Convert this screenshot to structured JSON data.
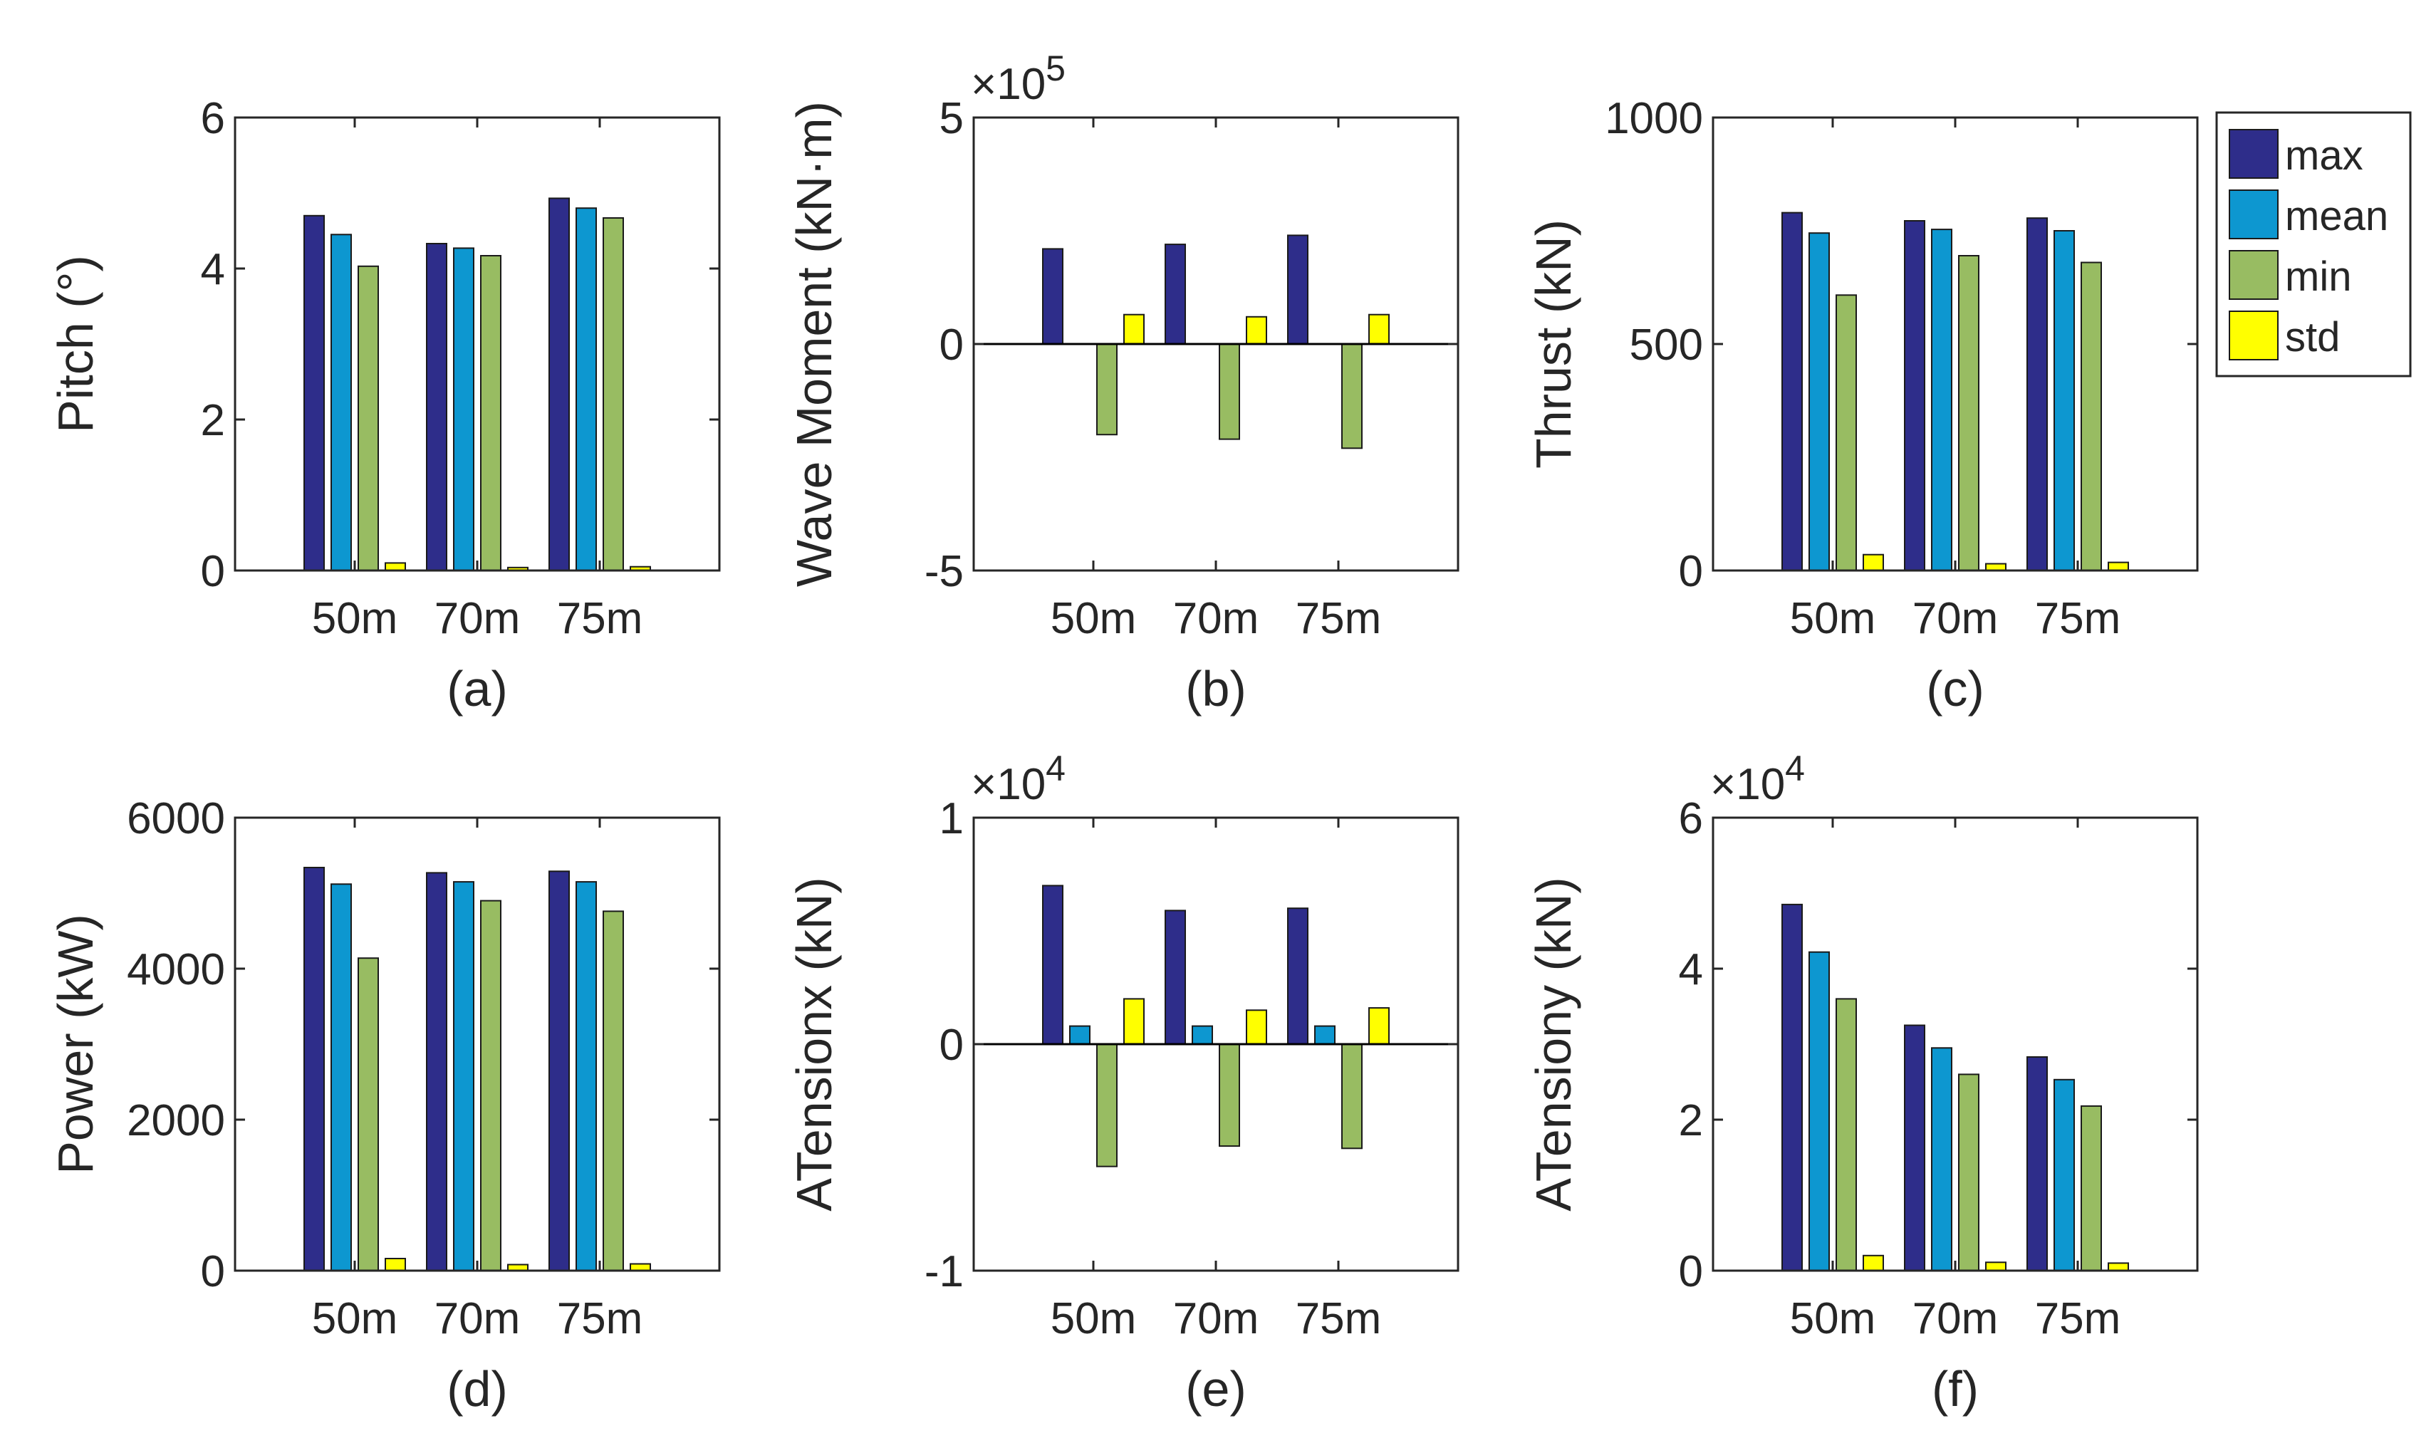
{
  "legend": {
    "items": [
      {
        "label": "max",
        "color": "#2E2D8A"
      },
      {
        "label": "mean",
        "color": "#0D97D0"
      },
      {
        "label": "min",
        "color": "#98BC62"
      },
      {
        "label": "std",
        "color": "#FFFF00"
      }
    ]
  },
  "chart_data": [
    {
      "id": "a",
      "type": "bar",
      "caption": "(a)",
      "title": "",
      "ylabel": "Pitch (°)",
      "categories": [
        "50m",
        "70m",
        "75m"
      ],
      "ylim": [
        0,
        6
      ],
      "yticks": [
        0,
        2,
        4,
        6
      ],
      "ytick_labels": [
        "0",
        "2",
        "4",
        "6"
      ],
      "exponent_label": "",
      "series": [
        {
          "name": "max",
          "values": [
            4.7,
            4.33,
            4.93
          ]
        },
        {
          "name": "mean",
          "values": [
            4.45,
            4.27,
            4.8
          ]
        },
        {
          "name": "min",
          "values": [
            4.03,
            4.17,
            4.67
          ]
        },
        {
          "name": "std",
          "values": [
            0.1,
            0.04,
            0.05
          ]
        }
      ]
    },
    {
      "id": "b",
      "type": "bar",
      "caption": "(b)",
      "title": "",
      "ylabel": "Wave Moment (kN·m)",
      "categories": [
        "50m",
        "70m",
        "75m"
      ],
      "ylim": [
        -5,
        5
      ],
      "yticks": [
        -5,
        0,
        5
      ],
      "ytick_labels": [
        "-5",
        "0",
        "5"
      ],
      "exponent_label": "×10^5",
      "series": [
        {
          "name": "max",
          "values": [
            2.1,
            2.2,
            2.4
          ]
        },
        {
          "name": "mean",
          "values": [
            0,
            0,
            0
          ]
        },
        {
          "name": "min",
          "values": [
            -2.0,
            -2.1,
            -2.3
          ]
        },
        {
          "name": "std",
          "values": [
            0.65,
            0.6,
            0.65
          ]
        }
      ]
    },
    {
      "id": "c",
      "type": "bar",
      "caption": "(c)",
      "title": "",
      "ylabel": "Thrust (kN)",
      "categories": [
        "50m",
        "70m",
        "75m"
      ],
      "ylim": [
        0,
        1000
      ],
      "yticks": [
        0,
        500,
        1000
      ],
      "ytick_labels": [
        "0",
        "500",
        "1000"
      ],
      "exponent_label": "",
      "series": [
        {
          "name": "max",
          "values": [
            790,
            772,
            778
          ]
        },
        {
          "name": "mean",
          "values": [
            745,
            753,
            750
          ]
        },
        {
          "name": "min",
          "values": [
            608,
            695,
            680
          ]
        },
        {
          "name": "std",
          "values": [
            35,
            15,
            18
          ]
        }
      ]
    },
    {
      "id": "d",
      "type": "bar",
      "caption": "(d)",
      "title": "",
      "ylabel": "Power (kW)",
      "categories": [
        "50m",
        "70m",
        "75m"
      ],
      "ylim": [
        0,
        6000
      ],
      "yticks": [
        0,
        2000,
        4000,
        6000
      ],
      "ytick_labels": [
        "0",
        "2000",
        "4000",
        "6000"
      ],
      "exponent_label": "",
      "series": [
        {
          "name": "max",
          "values": [
            5340,
            5270,
            5290
          ]
        },
        {
          "name": "mean",
          "values": [
            5120,
            5150,
            5150
          ]
        },
        {
          "name": "min",
          "values": [
            4140,
            4900,
            4760
          ]
        },
        {
          "name": "std",
          "values": [
            160,
            80,
            90
          ]
        }
      ]
    },
    {
      "id": "e",
      "type": "bar",
      "caption": "(e)",
      "title": "",
      "ylabel": "ATensionx (kN)",
      "categories": [
        "50m",
        "70m",
        "75m"
      ],
      "ylim": [
        -1,
        1
      ],
      "yticks": [
        -1,
        0,
        1
      ],
      "ytick_labels": [
        "-1",
        "0",
        "1"
      ],
      "exponent_label": "×10^4",
      "series": [
        {
          "name": "max",
          "values": [
            0.7,
            0.59,
            0.6
          ]
        },
        {
          "name": "mean",
          "values": [
            0.08,
            0.08,
            0.08
          ]
        },
        {
          "name": "min",
          "values": [
            -0.54,
            -0.45,
            -0.46
          ]
        },
        {
          "name": "std",
          "values": [
            0.2,
            0.15,
            0.16
          ]
        }
      ]
    },
    {
      "id": "f",
      "type": "bar",
      "caption": "(f)",
      "title": "",
      "ylabel": "ATensiony (kN)",
      "categories": [
        "50m",
        "70m",
        "75m"
      ],
      "ylim": [
        0,
        6
      ],
      "yticks": [
        0,
        2,
        4,
        6
      ],
      "ytick_labels": [
        "0",
        "2",
        "4",
        "6"
      ],
      "exponent_label": "×10^4",
      "series": [
        {
          "name": "max",
          "values": [
            4.85,
            3.25,
            2.83
          ]
        },
        {
          "name": "mean",
          "values": [
            4.22,
            2.95,
            2.53
          ]
        },
        {
          "name": "min",
          "values": [
            3.6,
            2.6,
            2.18
          ]
        },
        {
          "name": "std",
          "values": [
            0.2,
            0.11,
            0.1
          ]
        }
      ]
    }
  ]
}
